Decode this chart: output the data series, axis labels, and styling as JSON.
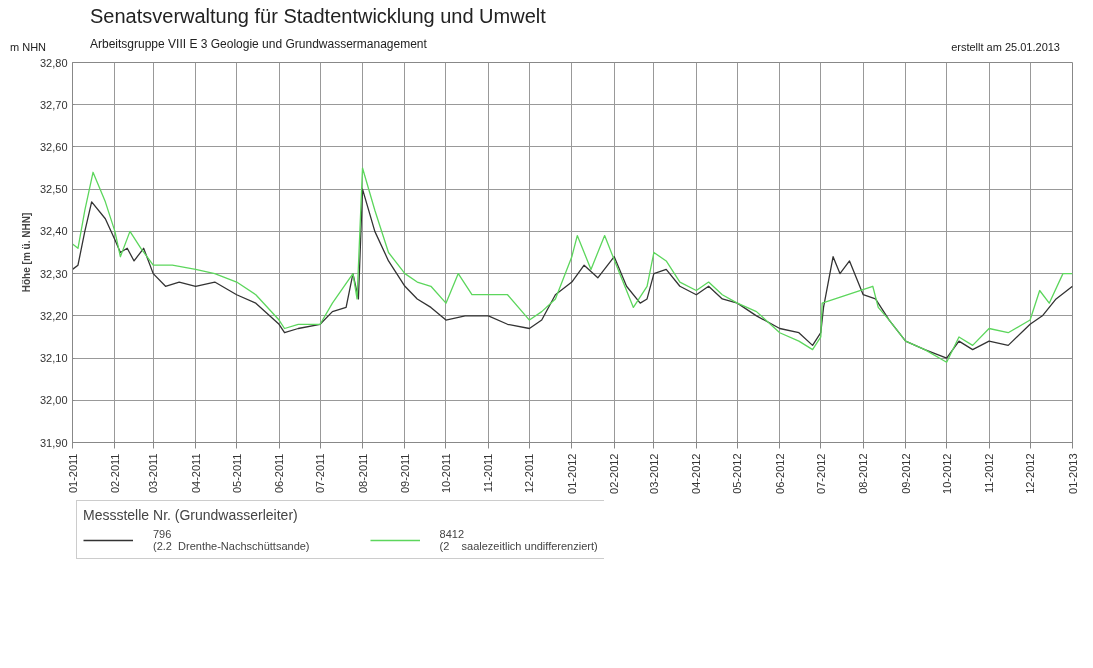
{
  "chart_data": {
    "type": "line",
    "title": "Senatsverwaltung für Stadtentwicklung und Umwelt",
    "subtitle": "Arbeitsgruppe VIII E 3 Geologie und Grundwassermanagement",
    "ylabel": "Höhe [m ü. NHN]",
    "legend_title": "Messstelle Nr. (Grundwasserleiter)",
    "annotations": [
      "m NHN",
      "erstellt am 25.01.2013"
    ],
    "xlim": [
      "2011-01-01",
      "2013-01-01"
    ],
    "xticks": [
      {
        "value": "2011-01-01",
        "label": "01-2011"
      },
      {
        "value": "2011-02-01",
        "label": "02-2011"
      },
      {
        "value": "2011-03-01",
        "label": "03-2011"
      },
      {
        "value": "2011-04-01",
        "label": "04-2011"
      },
      {
        "value": "2011-05-01",
        "label": "05-2011"
      },
      {
        "value": "2011-06-01",
        "label": "06-2011"
      },
      {
        "value": "2011-07-01",
        "label": "07-2011"
      },
      {
        "value": "2011-08-01",
        "label": "08-2011"
      },
      {
        "value": "2011-09-01",
        "label": "09-2011"
      },
      {
        "value": "2011-10-01",
        "label": "10-2011"
      },
      {
        "value": "2011-11-01",
        "label": "11-2011"
      },
      {
        "value": "2011-12-01",
        "label": "12-2011"
      },
      {
        "value": "2012-01-01",
        "label": "01-2012"
      },
      {
        "value": "2012-02-01",
        "label": "02-2012"
      },
      {
        "value": "2012-03-01",
        "label": "03-2012"
      },
      {
        "value": "2012-04-01",
        "label": "04-2012"
      },
      {
        "value": "2012-05-01",
        "label": "05-2012"
      },
      {
        "value": "2012-06-01",
        "label": "06-2012"
      },
      {
        "value": "2012-07-01",
        "label": "07-2012"
      },
      {
        "value": "2012-08-01",
        "label": "08-2012"
      },
      {
        "value": "2012-09-01",
        "label": "09-2012"
      },
      {
        "value": "2012-10-01",
        "label": "10-2012"
      },
      {
        "value": "2012-11-01",
        "label": "11-2012"
      },
      {
        "value": "2012-12-01",
        "label": "12-2012"
      },
      {
        "value": "2013-01-01",
        "label": "01-2013"
      }
    ],
    "ylim": [
      31.9,
      32.8
    ],
    "yticks": [
      {
        "value": 31.9,
        "label": "31,90"
      },
      {
        "value": 32.0,
        "label": "32,00"
      },
      {
        "value": 32.1,
        "label": "32,10"
      },
      {
        "value": 32.2,
        "label": "32,20"
      },
      {
        "value": 32.3,
        "label": "32,30"
      },
      {
        "value": 32.4,
        "label": "32,40"
      },
      {
        "value": 32.5,
        "label": "32,50"
      },
      {
        "value": 32.6,
        "label": "32,60"
      },
      {
        "value": 32.7,
        "label": "32,70"
      },
      {
        "value": 32.8,
        "label": "32,80"
      }
    ],
    "grid": true,
    "legend": "bottom",
    "series": [
      {
        "name": "796\n(2.2  Drenthe-Nachschüttsande)",
        "color": "#333333",
        "x": [
          "2011-01-01",
          "2011-01-05",
          "2011-01-10",
          "2011-01-15",
          "2011-01-25",
          "2011-02-01",
          "2011-02-05",
          "2011-02-10",
          "2011-02-15",
          "2011-02-22",
          "2011-03-01",
          "2011-03-10",
          "2011-03-20",
          "2011-04-01",
          "2011-04-15",
          "2011-05-01",
          "2011-05-15",
          "2011-06-01",
          "2011-06-05",
          "2011-06-15",
          "2011-07-01",
          "2011-07-10",
          "2011-07-20",
          "2011-07-25",
          "2011-07-29",
          "2011-08-01",
          "2011-08-10",
          "2011-08-20",
          "2011-09-01",
          "2011-09-10",
          "2011-09-20",
          "2011-10-01",
          "2011-10-15",
          "2011-11-01",
          "2011-11-15",
          "2011-12-01",
          "2011-12-10",
          "2011-12-20",
          "2012-01-01",
          "2012-01-10",
          "2012-01-20",
          "2012-02-01",
          "2012-02-10",
          "2012-02-20",
          "2012-02-25",
          "2012-03-01",
          "2012-03-10",
          "2012-03-20",
          "2012-04-01",
          "2012-04-10",
          "2012-04-20",
          "2012-05-01",
          "2012-05-15",
          "2012-06-01",
          "2012-06-15",
          "2012-06-25",
          "2012-07-01",
          "2012-07-03",
          "2012-07-10",
          "2012-07-15",
          "2012-07-22",
          "2012-08-01",
          "2012-08-10",
          "2012-08-20",
          "2012-09-01",
          "2012-09-15",
          "2012-10-01",
          "2012-10-10",
          "2012-10-20",
          "2012-11-01",
          "2012-11-15",
          "2012-12-01",
          "2012-12-10",
          "2012-12-20",
          "2013-01-01"
        ],
        "values": [
          32.31,
          32.32,
          32.4,
          32.47,
          32.43,
          32.38,
          32.35,
          32.36,
          32.33,
          32.36,
          32.3,
          32.27,
          32.28,
          32.27,
          32.28,
          32.25,
          32.23,
          32.18,
          32.16,
          32.17,
          32.18,
          32.21,
          32.22,
          32.3,
          32.24,
          32.5,
          32.4,
          32.33,
          32.27,
          32.24,
          32.22,
          32.19,
          32.2,
          32.2,
          32.18,
          32.17,
          32.19,
          32.25,
          32.28,
          32.32,
          32.29,
          32.34,
          32.27,
          32.23,
          32.24,
          32.3,
          32.31,
          32.27,
          32.25,
          32.27,
          32.24,
          32.23,
          32.2,
          32.17,
          32.16,
          32.13,
          32.16,
          32.22,
          32.34,
          32.3,
          32.33,
          32.25,
          32.24,
          32.19,
          32.14,
          32.12,
          32.1,
          32.14,
          32.12,
          32.14,
          32.13,
          32.18,
          32.2,
          32.24,
          32.27
        ]
      },
      {
        "name": "8412\n(2    saalezeitlich undifferenziert)",
        "color": "#5cd65c",
        "x": [
          "2011-01-01",
          "2011-01-05",
          "2011-01-10",
          "2011-01-16",
          "2011-01-25",
          "2011-02-01",
          "2011-02-05",
          "2011-02-12",
          "2011-02-20",
          "2011-03-01",
          "2011-03-15",
          "2011-04-01",
          "2011-04-15",
          "2011-05-01",
          "2011-05-15",
          "2011-06-01",
          "2011-06-05",
          "2011-06-15",
          "2011-07-01",
          "2011-07-10",
          "2011-07-25",
          "2011-07-28",
          "2011-08-01",
          "2011-08-10",
          "2011-08-20",
          "2011-09-01",
          "2011-09-10",
          "2011-09-20",
          "2011-10-01",
          "2011-10-10",
          "2011-10-20",
          "2011-11-01",
          "2011-11-15",
          "2011-12-01",
          "2011-12-10",
          "2011-12-20",
          "2012-01-01",
          "2012-01-05",
          "2012-01-15",
          "2012-01-25",
          "2012-02-05",
          "2012-02-15",
          "2012-02-25",
          "2012-03-01",
          "2012-03-10",
          "2012-03-20",
          "2012-04-01",
          "2012-04-10",
          "2012-04-20",
          "2012-05-01",
          "2012-05-15",
          "2012-06-01",
          "2012-06-15",
          "2012-06-25",
          "2012-07-01",
          "2012-07-02",
          "2012-08-08",
          "2012-08-12",
          "2012-08-20",
          "2012-09-01",
          "2012-09-15",
          "2012-10-01",
          "2012-10-10",
          "2012-10-20",
          "2012-11-01",
          "2012-11-15",
          "2012-12-01",
          "2012-12-08",
          "2012-12-15",
          "2012-12-25",
          "2013-01-01"
        ],
        "values": [
          32.37,
          32.36,
          32.45,
          32.54,
          32.47,
          32.4,
          32.34,
          32.4,
          32.36,
          32.32,
          32.32,
          32.31,
          32.3,
          32.28,
          32.25,
          32.19,
          32.17,
          32.18,
          32.18,
          32.23,
          32.3,
          32.24,
          32.55,
          32.45,
          32.35,
          32.3,
          32.28,
          32.27,
          32.23,
          32.3,
          32.25,
          32.25,
          32.25,
          32.19,
          32.21,
          32.24,
          32.34,
          32.39,
          32.31,
          32.39,
          32.3,
          32.22,
          32.27,
          32.35,
          32.33,
          32.28,
          32.26,
          32.28,
          32.25,
          32.23,
          32.21,
          32.16,
          32.14,
          32.12,
          32.15,
          32.23,
          32.27,
          32.22,
          32.19,
          32.14,
          32.12,
          32.09,
          32.15,
          32.13,
          32.17,
          32.16,
          32.19,
          32.26,
          32.23,
          32.3,
          32.3
        ]
      }
    ]
  }
}
